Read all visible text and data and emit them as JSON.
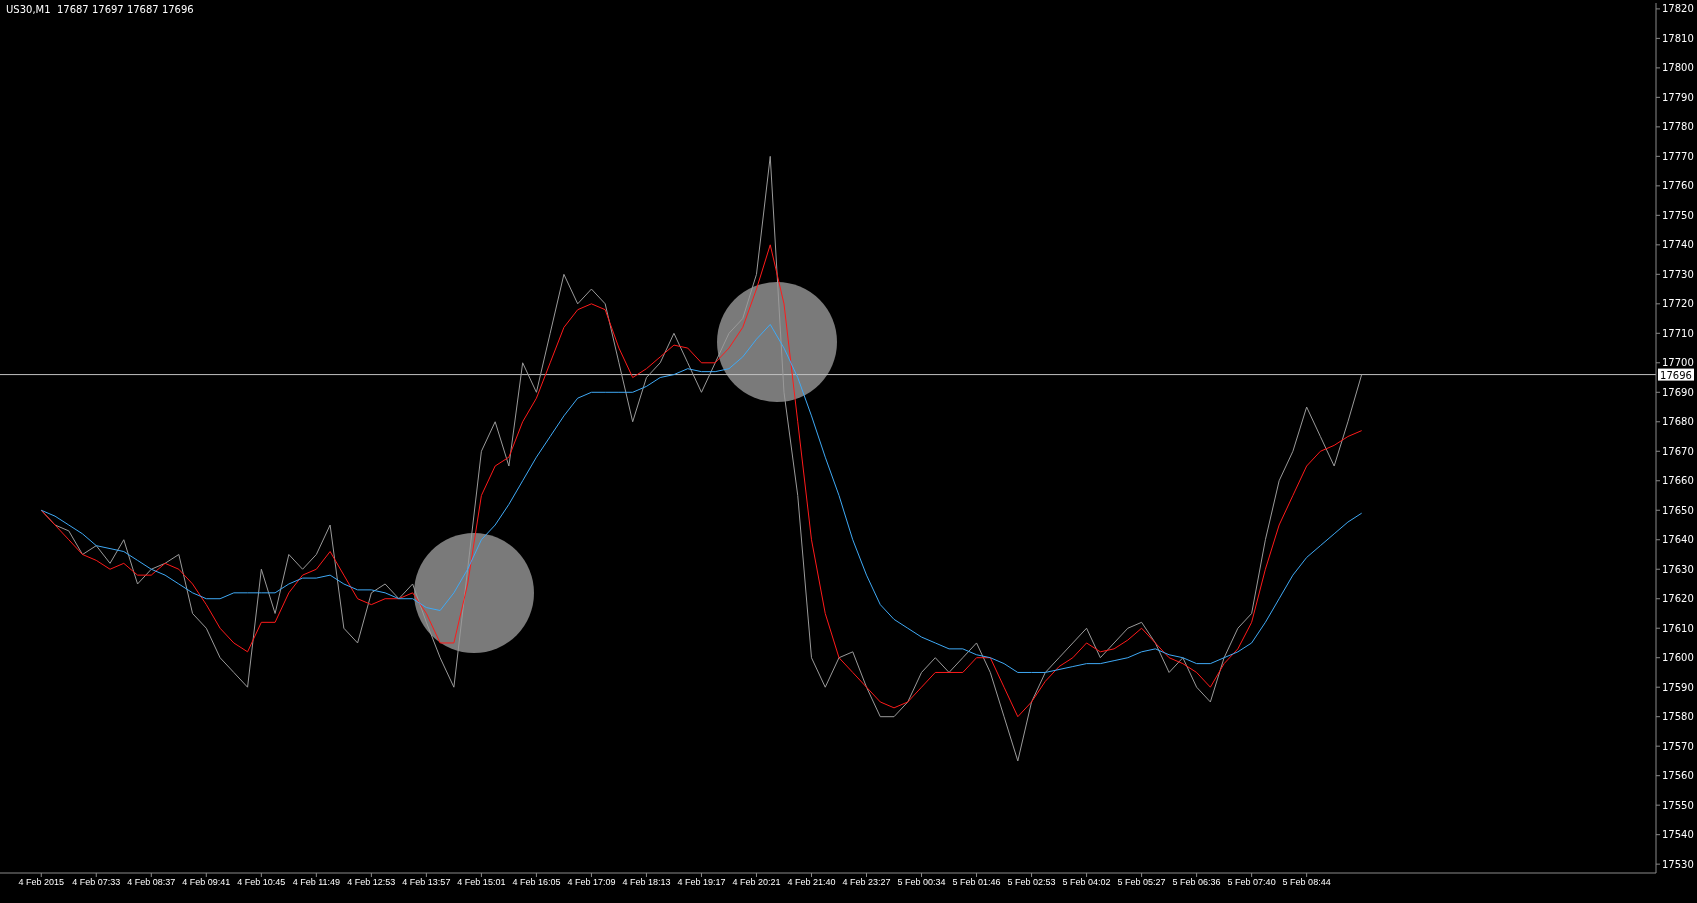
{
  "chart_data": {
    "type": "line",
    "title": "US30,M1  17687 17697 17687 17696",
    "categories": [
      "4 Feb 2015",
      null,
      null,
      null,
      "4 Feb 07:33",
      null,
      null,
      null,
      "4 Feb 08:37",
      null,
      null,
      null,
      "4 Feb 09:41",
      null,
      null,
      null,
      "4 Feb 10:45",
      null,
      null,
      null,
      "4 Feb 11:49",
      null,
      null,
      null,
      "4 Feb 12:53",
      null,
      null,
      null,
      "4 Feb 13:57",
      null,
      null,
      null,
      "4 Feb 15:01",
      null,
      null,
      null,
      "4 Feb 16:05",
      null,
      null,
      null,
      "4 Feb 17:09",
      null,
      null,
      null,
      "4 Feb 18:13",
      null,
      null,
      null,
      "4 Feb 19:17",
      null,
      null,
      null,
      "4 Feb 20:21",
      null,
      null,
      null,
      "4 Feb 21:40",
      null,
      null,
      null,
      "4 Feb 23:27",
      null,
      null,
      null,
      "5 Feb 00:34",
      null,
      null,
      null,
      "5 Feb 01:46",
      null,
      null,
      null,
      "5 Feb 02:53",
      null,
      null,
      null,
      "5 Feb 04:02",
      null,
      null,
      null,
      "5 Feb 05:27",
      null,
      null,
      null,
      "5 Feb 06:36",
      null,
      null,
      null,
      "5 Feb 07:40",
      null,
      null,
      null,
      "5 Feb 08:44",
      null,
      null,
      null,
      null
    ],
    "series": [
      {
        "color": "#9a9a9a",
        "values": [
          17650,
          17645,
          17643,
          17635,
          17638,
          17632,
          17640,
          17625,
          17630,
          17632,
          17635,
          17615,
          17610,
          17600,
          17595,
          17590,
          17630,
          17615,
          17635,
          17630,
          17635,
          17645,
          17610,
          17605,
          17622,
          17625,
          17620,
          17625,
          17612,
          17600,
          17590,
          17630,
          17670,
          17680,
          17665,
          17700,
          17690,
          17710,
          17730,
          17720,
          17725,
          17720,
          17700,
          17680,
          17695,
          17700,
          17710,
          17700,
          17690,
          17700,
          17710,
          17715,
          17730,
          17770,
          17690,
          17655,
          17600,
          17590,
          17600,
          17602,
          17590,
          17580,
          17580,
          17585,
          17595,
          17600,
          17595,
          17600,
          17605,
          17595,
          17580,
          17565,
          17585,
          17595,
          17600,
          17605,
          17610,
          17600,
          17605,
          17610,
          17612,
          17605,
          17595,
          17600,
          17590,
          17585,
          17600,
          17610,
          17615,
          17640,
          17660,
          17670,
          17685,
          17675,
          17665,
          17680,
          17696
        ]
      },
      {
        "color": "#ff1a1a",
        "values": [
          17650,
          17645,
          17640,
          17635,
          17633,
          17630,
          17632,
          17628,
          17628,
          17632,
          17630,
          17625,
          17618,
          17610,
          17605,
          17602,
          17612,
          17612,
          17622,
          17628,
          17630,
          17636,
          17628,
          17620,
          17618,
          17620,
          17620,
          17622,
          17615,
          17605,
          17605,
          17625,
          17655,
          17665,
          17668,
          17680,
          17688,
          17700,
          17712,
          17718,
          17720,
          17718,
          17705,
          17695,
          17698,
          17702,
          17706,
          17705,
          17700,
          17700,
          17705,
          17712,
          17725,
          17740,
          17720,
          17680,
          17640,
          17615,
          17600,
          17595,
          17590,
          17585,
          17583,
          17585,
          17590,
          17595,
          17595,
          17595,
          17600,
          17600,
          17590,
          17580,
          17585,
          17592,
          17597,
          17600,
          17605,
          17602,
          17603,
          17606,
          17610,
          17605,
          17600,
          17598,
          17595,
          17590,
          17598,
          17603,
          17612,
          17630,
          17645,
          17655,
          17665,
          17670,
          17672,
          17675,
          17677
        ]
      },
      {
        "color": "#3fa9f5",
        "values": [
          17650,
          17648,
          17645,
          17642,
          17638,
          17637,
          17636,
          17633,
          17630,
          17628,
          17625,
          17622,
          17620,
          17620,
          17622,
          17622,
          17622,
          17622,
          17625,
          17627,
          17627,
          17628,
          17625,
          17623,
          17623,
          17622,
          17620,
          17620,
          17617,
          17616,
          17622,
          17630,
          17640,
          17645,
          17652,
          17660,
          17668,
          17675,
          17682,
          17688,
          17690,
          17690,
          17690,
          17690,
          17692,
          17695,
          17696,
          17698,
          17697,
          17697,
          17698,
          17702,
          17708,
          17713,
          17705,
          17695,
          17682,
          17668,
          17655,
          17640,
          17628,
          17618,
          17613,
          17610,
          17607,
          17605,
          17603,
          17603,
          17601,
          17600,
          17598,
          17595,
          17595,
          17595,
          17596,
          17597,
          17598,
          17598,
          17599,
          17600,
          17602,
          17603,
          17601,
          17600,
          17598,
          17598,
          17600,
          17602,
          17605,
          17612,
          17620,
          17628,
          17634,
          17638,
          17642,
          17646,
          17649
        ]
      }
    ],
    "ylim": [
      17527,
      17822
    ],
    "yticks": [
      17530,
      17540,
      17550,
      17560,
      17570,
      17580,
      17590,
      17600,
      17610,
      17620,
      17630,
      17640,
      17650,
      17660,
      17670,
      17680,
      17690,
      17700,
      17710,
      17720,
      17730,
      17740,
      17750,
      17760,
      17770,
      17780,
      17790,
      17800,
      17810,
      17820
    ],
    "ref_lines": [
      {
        "axis": "y",
        "value": 17696,
        "label": "17696",
        "color": "#c0c0c0"
      }
    ],
    "grid": false,
    "legend": false,
    "marker": "none",
    "line_style": "solid"
  }
}
